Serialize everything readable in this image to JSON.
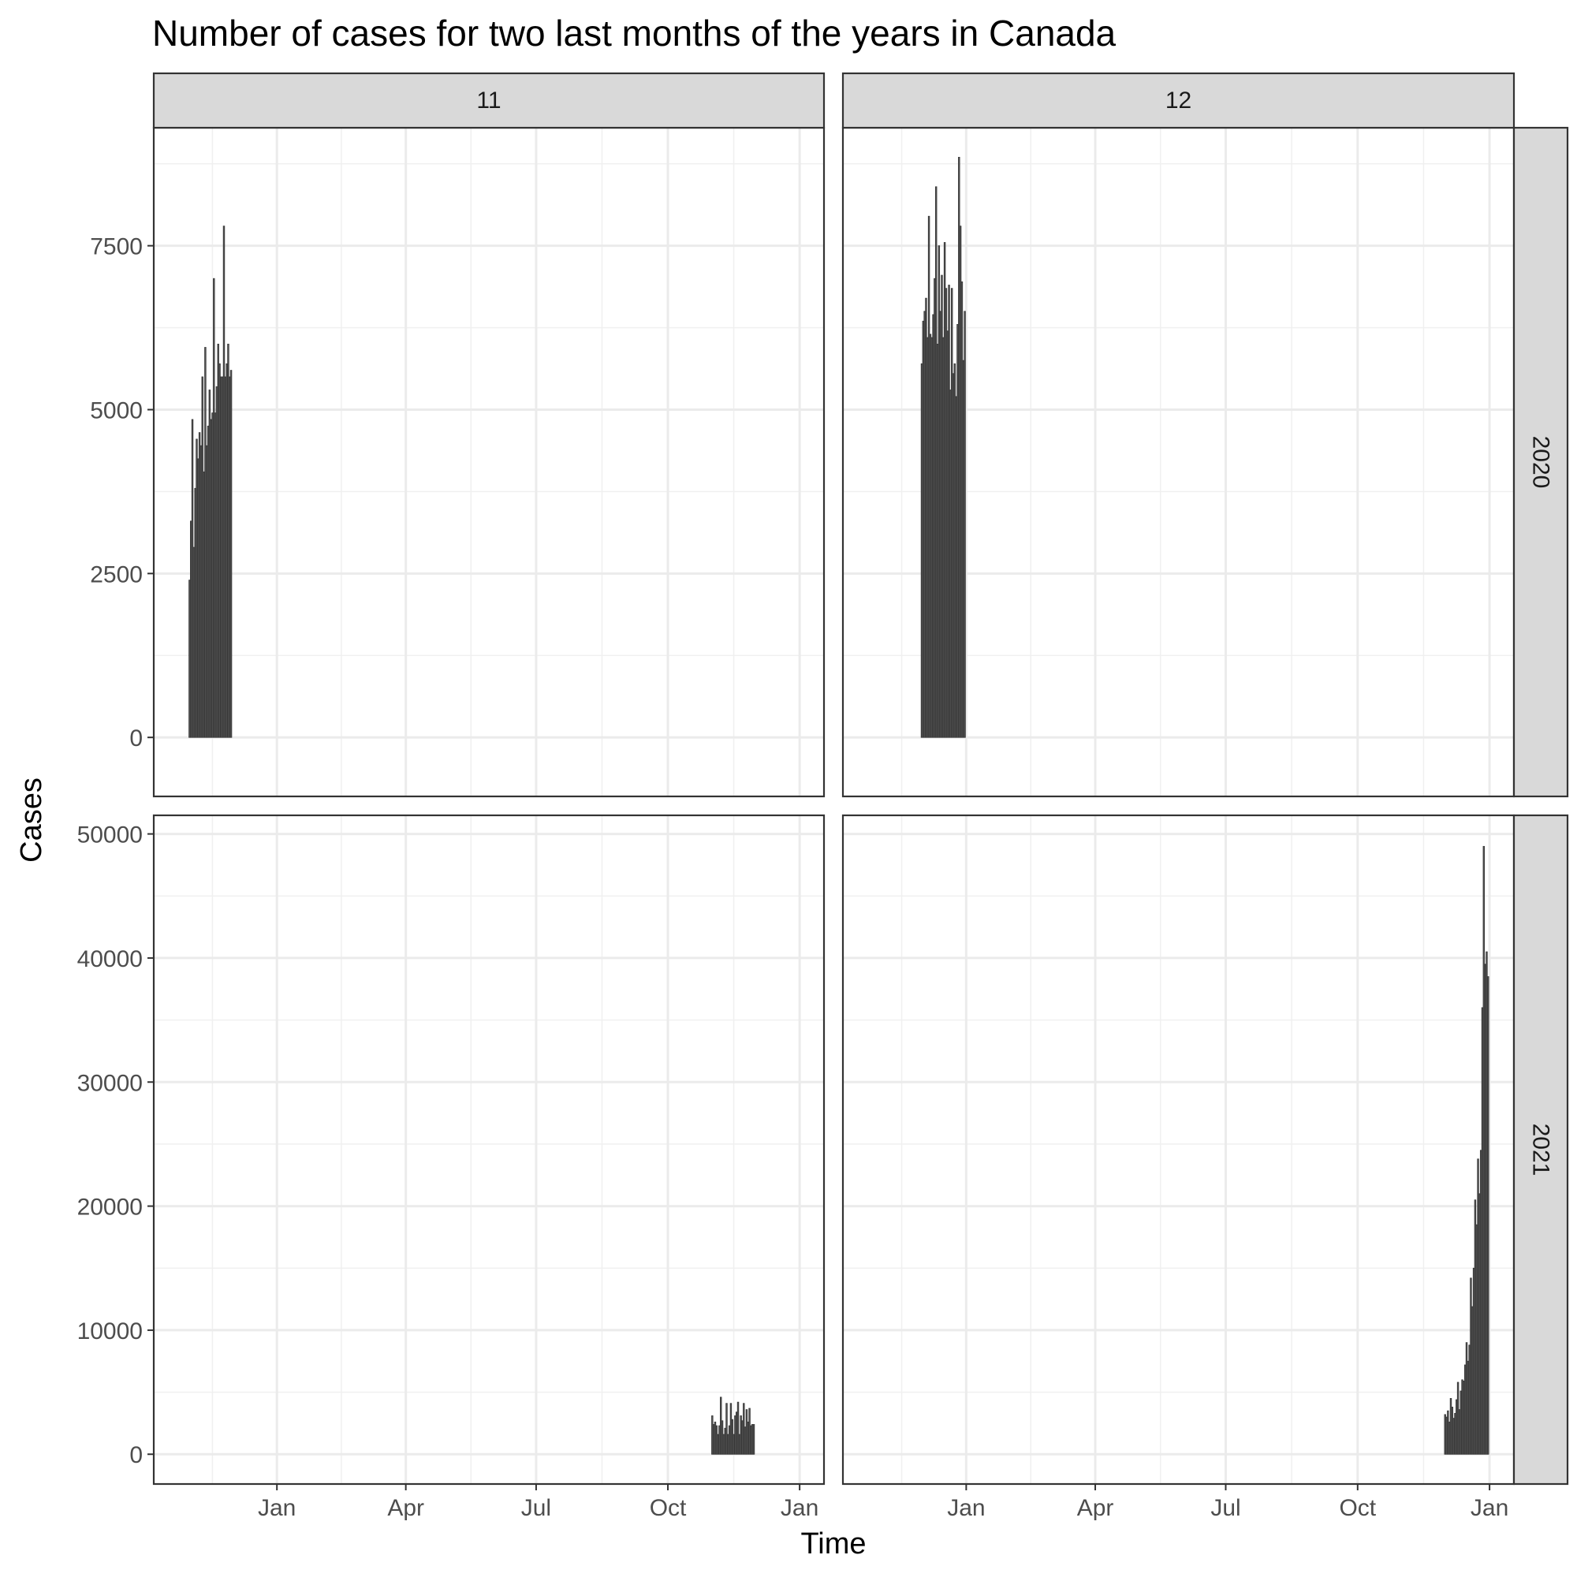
{
  "chart_data": {
    "type": "bar",
    "title": "Number of cases for two last months of the years in Canada",
    "xlabel": "Time",
    "ylabel": "Cases",
    "facets": {
      "columns": [
        "11",
        "12"
      ],
      "rows": [
        "2020",
        "2021"
      ]
    },
    "x_range": [
      "2020-10-07",
      "2022-01-18"
    ],
    "x_ticks": [
      {
        "date": "2021-01-01",
        "label": "Jan"
      },
      {
        "date": "2021-04-01",
        "label": "Apr"
      },
      {
        "date": "2021-07-01",
        "label": "Jul"
      },
      {
        "date": "2021-10-01",
        "label": "Oct"
      },
      {
        "date": "2022-01-01",
        "label": "Jan"
      }
    ],
    "y_scales": {
      "2020": {
        "ylim": [
          -900,
          9300
        ],
        "ticks": [
          0,
          2500,
          5000,
          7500
        ]
      },
      "2021": {
        "ylim": [
          -2400,
          51500
        ],
        "ticks": [
          0,
          10000,
          20000,
          30000,
          40000,
          50000
        ]
      }
    },
    "grid": true,
    "panels": [
      {
        "row": "2020",
        "col": "11",
        "start_date": "2020-11-01",
        "values": [
          2400,
          3300,
          4850,
          2900,
          3800,
          4550,
          4250,
          4650,
          4450,
          5500,
          4050,
          5950,
          4450,
          4750,
          5300,
          4850,
          4950,
          7000,
          4950,
          5350,
          6000,
          5700,
          5500,
          5500,
          7800,
          5500,
          5700,
          6000,
          5500,
          5600
        ]
      },
      {
        "row": "2020",
        "col": "12",
        "start_date": "2020-12-01",
        "values": [
          5700,
          6350,
          6500,
          6700,
          6100,
          7950,
          6150,
          6100,
          6450,
          7000,
          8400,
          6000,
          7500,
          6500,
          7050,
          6100,
          7550,
          6850,
          6200,
          6900,
          5300,
          6850,
          5550,
          5700,
          5200,
          6300,
          8850,
          7800,
          6950,
          5750,
          6500
        ]
      },
      {
        "row": "2021",
        "col": "11",
        "start_date": "2021-11-01",
        "values": [
          3100,
          2400,
          2600,
          2300,
          1600,
          2300,
          4600,
          2700,
          1600,
          2100,
          4100,
          1600,
          2300,
          4100,
          2800,
          1600,
          3100,
          3400,
          4200,
          1600,
          3100,
          2700,
          4100,
          2200,
          3600,
          2600,
          3700,
          2300,
          2400,
          2400
        ]
      },
      {
        "row": "2021",
        "col": "12",
        "start_date": "2021-12-01",
        "values": [
          3200,
          3000,
          3500,
          2600,
          4500,
          3800,
          2900,
          3300,
          4400,
          5800,
          3600,
          5100,
          6000,
          5900,
          7200,
          9000,
          7500,
          8800,
          14200,
          11900,
          15000,
          20500,
          18500,
          23800,
          21000,
          24500,
          36000,
          49000,
          39500,
          40500,
          38500
        ]
      }
    ]
  }
}
